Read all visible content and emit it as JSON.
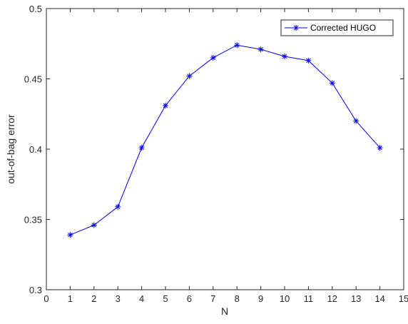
{
  "chart_data": {
    "type": "line",
    "title": "",
    "xlabel": "N",
    "ylabel": "out-of-bag error",
    "xlim": [
      0,
      15
    ],
    "ylim": [
      0.3,
      0.5
    ],
    "x_ticks": [
      "0",
      "1",
      "2",
      "3",
      "4",
      "5",
      "6",
      "7",
      "8",
      "9",
      "10",
      "11",
      "12",
      "13",
      "14",
      "15"
    ],
    "y_ticks": [
      "0.3",
      "0.35",
      "0.4",
      "0.45",
      "0.5"
    ],
    "grid": false,
    "legend_position": "top-right",
    "series": [
      {
        "name": "Corrected HUGO",
        "color": "#0000ff",
        "marker": "asterisk",
        "x": [
          1,
          2,
          3,
          4,
          5,
          6,
          7,
          8,
          9,
          10,
          11,
          12,
          13,
          14
        ],
        "values": [
          0.339,
          0.346,
          0.359,
          0.401,
          0.431,
          0.452,
          0.465,
          0.474,
          0.471,
          0.466,
          0.463,
          0.447,
          0.42,
          0.401
        ]
      }
    ]
  }
}
